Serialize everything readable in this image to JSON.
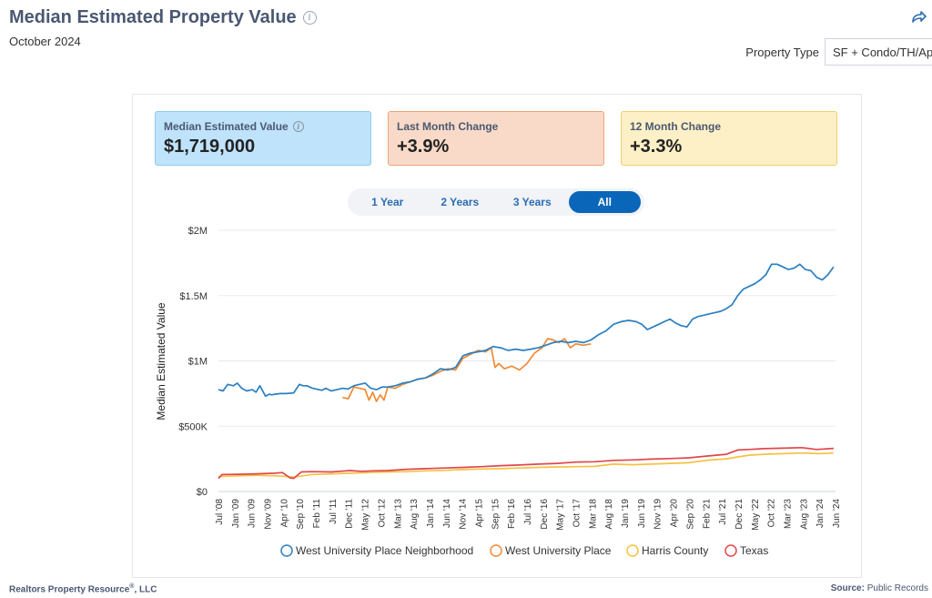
{
  "header": {
    "title": "Median Estimated Property Value",
    "date": "October 2024",
    "property_type_label": "Property Type",
    "property_type_value": "SF + Condo/TH/Apt"
  },
  "cards": [
    {
      "label": "Median Estimated Value",
      "value": "$1,719,000"
    },
    {
      "label": "Last Month Change",
      "value": "+3.9%"
    },
    {
      "label": "12 Month Change",
      "value": "+3.3%"
    }
  ],
  "ranges": [
    "1 Year",
    "2 Years",
    "3 Years",
    "All"
  ],
  "active_range": "All",
  "footer": {
    "left": "Realtors Property Resource",
    "left_mark": "®",
    "left_suffix": ", LLC",
    "source_label": "Source:",
    "source_value": "Public Records"
  },
  "colors": {
    "title": "#4a5872",
    "accent": "#0a66b8",
    "neighborhood": "#2b7fc0",
    "city": "#f08a35",
    "county": "#f5c242",
    "state": "#e0474c"
  },
  "chart_data": {
    "type": "line",
    "title": "",
    "ylabel": "Median Estimated Value",
    "xlabel": "",
    "ylim": [
      0,
      2000000
    ],
    "ytick_values": [
      0,
      500000,
      1000000,
      1500000,
      2000000
    ],
    "ytick_labels": [
      "$0",
      "$500K",
      "$1M",
      "$1.5M",
      "$2M"
    ],
    "xlim": [
      2008.5,
      2024.9
    ],
    "xtick_labels": [
      "Jul '08",
      "Jan '09",
      "Jun '09",
      "Nov '09",
      "Apr '10",
      "Sep '10",
      "Feb '11",
      "Jul '11",
      "Dec '11",
      "May '12",
      "Oct '12",
      "Mar '13",
      "Aug '13",
      "Jan '14",
      "Jun '14",
      "Nov '14",
      "Apr '15",
      "Sep '15",
      "Feb '16",
      "Jul '16",
      "Dec '16",
      "May '17",
      "Oct '17",
      "Mar '18",
      "Aug '18",
      "Jan '19",
      "Jun '19",
      "Nov '19",
      "Apr '20",
      "Sep '20",
      "Feb '21",
      "Jul '21",
      "Dec '21",
      "May '22",
      "Oct '22",
      "Mar '23",
      "Aug '23",
      "Jan '24",
      "Jun '24"
    ],
    "grid": true,
    "series": [
      {
        "name": "West University Place Neighborhood",
        "color_key": "neighborhood",
        "x": [
          2008.5,
          2008.62,
          2008.75,
          2008.9,
          2009.0,
          2009.12,
          2009.25,
          2009.4,
          2009.5,
          2009.6,
          2009.75,
          2009.85,
          2009.92,
          2010.0,
          2010.15,
          2010.3,
          2010.5,
          2010.65,
          2010.75,
          2010.85,
          2011.0,
          2011.25,
          2011.35,
          2011.5,
          2011.65,
          2011.8,
          2011.95,
          2012.1,
          2012.25,
          2012.4,
          2012.55,
          2012.7,
          2012.85,
          2013.0,
          2013.2,
          2013.4,
          2013.6,
          2013.8,
          2014.0,
          2014.2,
          2014.4,
          2014.6,
          2014.8,
          2015.0,
          2015.2,
          2015.4,
          2015.6,
          2015.8,
          2016.0,
          2016.2,
          2016.4,
          2016.6,
          2016.8,
          2017.0,
          2017.2,
          2017.4,
          2017.6,
          2017.8,
          2018.0,
          2018.2,
          2018.4,
          2018.6,
          2018.8,
          2019.0,
          2019.2,
          2019.4,
          2019.6,
          2019.75,
          2019.9,
          2020.05,
          2020.2,
          2020.35,
          2020.5,
          2020.65,
          2020.8,
          2020.95,
          2021.1,
          2021.25,
          2021.4,
          2021.55,
          2021.7,
          2021.85,
          2022.0,
          2022.15,
          2022.3,
          2022.45,
          2022.6,
          2022.75,
          2022.9,
          2023.05,
          2023.2,
          2023.35,
          2023.5,
          2023.65,
          2023.8,
          2023.95,
          2024.1,
          2024.25,
          2024.4,
          2024.55,
          2024.7,
          2024.85
        ],
        "y": [
          780000,
          770000,
          820000,
          810000,
          830000,
          790000,
          770000,
          780000,
          760000,
          810000,
          730000,
          745000,
          740000,
          745000,
          750000,
          750000,
          755000,
          820000,
          810000,
          810000,
          790000,
          775000,
          790000,
          770000,
          780000,
          790000,
          785000,
          810000,
          820000,
          830000,
          790000,
          780000,
          800000,
          800000,
          810000,
          830000,
          840000,
          860000,
          870000,
          900000,
          940000,
          930000,
          950000,
          1040000,
          1060000,
          1070000,
          1080000,
          1110000,
          1100000,
          1080000,
          1090000,
          1080000,
          1090000,
          1100000,
          1120000,
          1140000,
          1150000,
          1140000,
          1150000,
          1140000,
          1160000,
          1200000,
          1230000,
          1280000,
          1300000,
          1310000,
          1300000,
          1280000,
          1240000,
          1260000,
          1280000,
          1300000,
          1320000,
          1290000,
          1270000,
          1260000,
          1320000,
          1340000,
          1350000,
          1360000,
          1370000,
          1380000,
          1400000,
          1430000,
          1500000,
          1550000,
          1570000,
          1590000,
          1620000,
          1660000,
          1740000,
          1740000,
          1720000,
          1700000,
          1710000,
          1740000,
          1700000,
          1690000,
          1640000,
          1620000,
          1660000,
          1720000
        ]
      },
      {
        "name": "West University Place",
        "color_key": "city",
        "x": [
          2011.8,
          2011.95,
          2012.1,
          2012.25,
          2012.4,
          2012.5,
          2012.6,
          2012.7,
          2012.8,
          2012.9,
          2013.0,
          2013.2,
          2013.4,
          2013.6,
          2013.8,
          2014.0,
          2014.2,
          2014.4,
          2014.6,
          2014.8,
          2015.0,
          2015.2,
          2015.4,
          2015.6,
          2015.75,
          2015.85,
          2015.95,
          2016.1,
          2016.3,
          2016.5,
          2016.7,
          2016.9,
          2017.1,
          2017.25,
          2017.4,
          2017.55,
          2017.7,
          2017.85,
          2018.0,
          2018.2,
          2018.4
        ],
        "y": [
          720000,
          710000,
          800000,
          790000,
          780000,
          700000,
          760000,
          690000,
          740000,
          700000,
          800000,
          790000,
          820000,
          840000,
          860000,
          870000,
          890000,
          920000,
          940000,
          930000,
          1020000,
          1050000,
          1080000,
          1070000,
          1100000,
          950000,
          980000,
          940000,
          960000,
          930000,
          980000,
          1060000,
          1100000,
          1170000,
          1160000,
          1140000,
          1170000,
          1100000,
          1130000,
          1120000,
          1130000
        ]
      },
      {
        "name": "Harris County",
        "color_key": "county",
        "x": [
          2008.5,
          2009.0,
          2009.5,
          2010.0,
          2010.3,
          2010.5,
          2011.0,
          2011.5,
          2012.0,
          2012.5,
          2013.0,
          2013.5,
          2014.0,
          2014.5,
          2015.0,
          2015.5,
          2016.0,
          2016.5,
          2017.0,
          2017.5,
          2018.0,
          2018.5,
          2019.0,
          2019.5,
          2020.0,
          2020.5,
          2021.0,
          2021.5,
          2022.0,
          2022.3,
          2022.6,
          2023.0,
          2023.5,
          2024.0,
          2024.5,
          2024.85
        ],
        "y": [
          115000,
          120000,
          125000,
          120000,
          115000,
          110000,
          130000,
          135000,
          140000,
          145000,
          150000,
          152000,
          158000,
          162000,
          168000,
          172000,
          175000,
          180000,
          185000,
          188000,
          190000,
          192000,
          210000,
          205000,
          210000,
          215000,
          220000,
          240000,
          250000,
          265000,
          278000,
          285000,
          290000,
          295000,
          290000,
          295000
        ]
      },
      {
        "name": "Texas",
        "color_key": "state",
        "x": [
          2008.5,
          2008.6,
          2009.0,
          2009.5,
          2010.0,
          2010.2,
          2010.4,
          2010.5,
          2010.7,
          2011.0,
          2011.5,
          2012.0,
          2012.3,
          2012.6,
          2013.0,
          2013.5,
          2014.0,
          2014.5,
          2015.0,
          2015.5,
          2016.0,
          2016.5,
          2017.0,
          2017.5,
          2018.0,
          2018.5,
          2019.0,
          2019.5,
          2020.0,
          2020.5,
          2021.0,
          2021.5,
          2022.0,
          2022.3,
          2022.6,
          2023.0,
          2023.5,
          2024.0,
          2024.4,
          2024.85
        ],
        "y": [
          100000,
          130000,
          132000,
          135000,
          140000,
          145000,
          105000,
          100000,
          150000,
          152000,
          150000,
          160000,
          155000,
          158000,
          160000,
          170000,
          175000,
          180000,
          185000,
          190000,
          198000,
          203000,
          210000,
          215000,
          225000,
          228000,
          238000,
          242000,
          248000,
          252000,
          258000,
          272000,
          285000,
          318000,
          322000,
          328000,
          332000,
          336000,
          322000,
          330000
        ]
      }
    ]
  }
}
